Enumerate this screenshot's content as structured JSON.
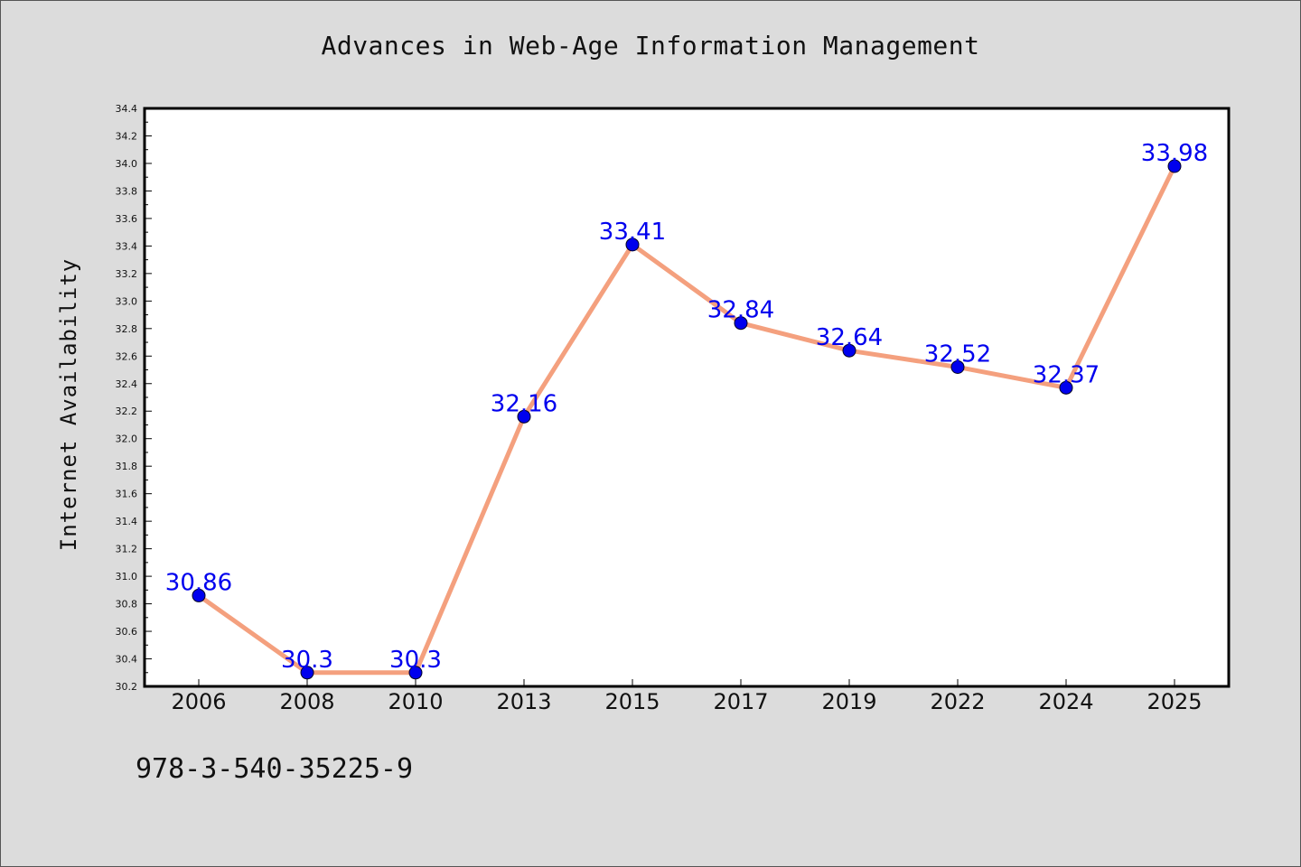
{
  "page": {
    "title": "Advances in Web-Age Information Management",
    "footer_text": "978-3-540-35225-9"
  },
  "colors": {
    "background": "#dcdcdc",
    "plot_background": "#ffffff",
    "line": "#f4a07e",
    "marker": "#0000ee",
    "data_label": "#0000ee"
  },
  "chart_data": {
    "type": "line",
    "title": "Advances in Web-Age Information Management",
    "xlabel": "",
    "ylabel": "Internet Availability",
    "categories": [
      "2006",
      "2008",
      "2010",
      "2013",
      "2015",
      "2017",
      "2019",
      "2022",
      "2024",
      "2025"
    ],
    "series": [
      {
        "values": [
          30.86,
          30.3,
          30.3,
          32.16,
          33.41,
          32.84,
          32.64,
          32.52,
          32.37,
          33.98
        ],
        "labels": [
          "30.86",
          "30.3",
          "30.3",
          "32.16",
          "33.41",
          "32.84",
          "32.64",
          "32.52",
          "32.37",
          "33.98"
        ]
      }
    ],
    "ylim": [
      30.2,
      34.4
    ],
    "yticks": [
      "30.2",
      "30.4",
      "30.6",
      "30.8",
      "31.0",
      "31.2",
      "31.4",
      "31.6",
      "31.8",
      "32.0",
      "32.2",
      "32.4",
      "32.6",
      "32.8",
      "33.0",
      "33.2",
      "33.4",
      "33.6",
      "33.8",
      "34.0",
      "34.2",
      "34.4"
    ],
    "grid": false,
    "legend": "none",
    "marker": "circle"
  }
}
